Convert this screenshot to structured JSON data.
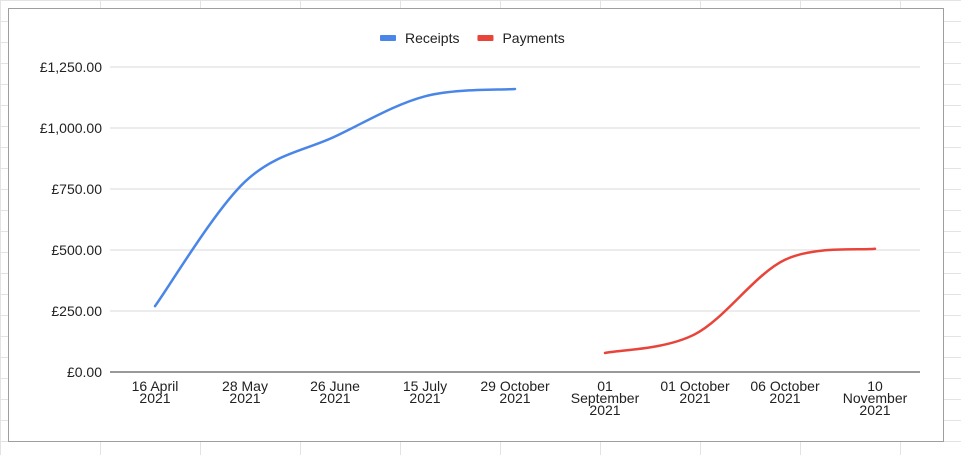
{
  "chart_data": {
    "type": "line",
    "categories": [
      [
        "16 April",
        "2021"
      ],
      [
        "28 May",
        "2021"
      ],
      [
        "26 June",
        "2021"
      ],
      [
        "15 July",
        "2021"
      ],
      [
        "29 October",
        "2021"
      ],
      [
        "01",
        "September",
        "2021"
      ],
      [
        "01 October",
        "2021"
      ],
      [
        "06 October",
        "2021"
      ],
      [
        "10",
        "November",
        "2021"
      ]
    ],
    "series": [
      {
        "name": "Receipts",
        "color": "#4a86e8",
        "values": [
          270,
          780,
          965,
          1130,
          1160,
          null,
          null,
          null,
          null
        ]
      },
      {
        "name": "Payments",
        "color": "#e8443a",
        "values": [
          null,
          null,
          null,
          null,
          null,
          78,
          155,
          460,
          505
        ]
      }
    ],
    "yticks": [
      "£0.00",
      "£250.00",
      "£500.00",
      "£750.00",
      "£1,000.00",
      "£1,250.00"
    ],
    "ylim": [
      0,
      1250
    ],
    "grid": true,
    "legend_position": "top",
    "smooth": true
  }
}
